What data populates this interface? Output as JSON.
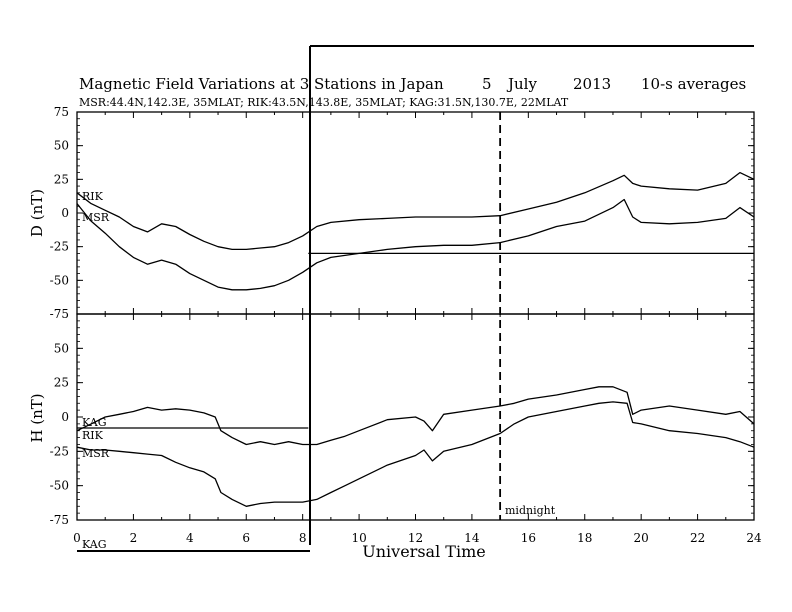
{
  "header": {
    "title": "Magnetic Field Variations at 3 Stations in Japan",
    "day": "5",
    "month": "July",
    "year": "2013",
    "averaging": "10-s averages",
    "subtitle": "MSR:44.4N,142.3E, 35MLAT;  RIK:43.5N,143.8E, 35MLAT;  KAG:31.5N,130.7E, 22MLAT"
  },
  "chart_data": [
    {
      "type": "line",
      "panel": "top",
      "ylabel": "D (nT)",
      "ylim": [
        -75,
        75
      ],
      "yticks": [
        "75",
        "50",
        "25",
        "0",
        "-25",
        "-50",
        "-75"
      ],
      "xlim": [
        0,
        24
      ],
      "grid": false,
      "series": [
        {
          "name": "RIK",
          "x": [
            0,
            0.5,
            1,
            1.5,
            2,
            2.5,
            3,
            3.5,
            4,
            4.5,
            5,
            5.5,
            6,
            6.5,
            7,
            7.5,
            8,
            8.5,
            9,
            10,
            11,
            12,
            13,
            14,
            15,
            16,
            17,
            18,
            19,
            19.4,
            19.7,
            20,
            21,
            22,
            23,
            23.5,
            24
          ],
          "y": [
            15,
            7,
            2,
            -3,
            -10,
            -14,
            -8,
            -10,
            -16,
            -21,
            -25,
            -27,
            -27,
            -26,
            -25,
            -22,
            -17,
            -10,
            -7,
            -5,
            -4,
            -3,
            -3,
            -3,
            -2,
            3,
            8,
            15,
            24,
            28,
            22,
            20,
            18,
            17,
            22,
            30,
            25
          ]
        },
        {
          "name": "MSR",
          "x": [
            0,
            0.5,
            1,
            1.5,
            2,
            2.5,
            3,
            3.5,
            4,
            4.5,
            5,
            5.5,
            6,
            6.5,
            7,
            7.5,
            8,
            8.5,
            9,
            10,
            11,
            12,
            13,
            14,
            15,
            16,
            17,
            18,
            19,
            19.4,
            19.7,
            20,
            21,
            22,
            23,
            23.5,
            24
          ],
          "y": [
            7,
            -6,
            -15,
            -25,
            -33,
            -38,
            -35,
            -38,
            -45,
            -50,
            -55,
            -57,
            -57,
            -56,
            -54,
            -50,
            -44,
            -37,
            -33,
            -30,
            -27,
            -25,
            -24,
            -24,
            -22,
            -17,
            -10,
            -6,
            4,
            10,
            -3,
            -7,
            -8,
            -7,
            -4,
            4,
            -3
          ]
        }
      ],
      "annotations": [
        {
          "text": "RIK"
        },
        {
          "text": "MSR"
        }
      ],
      "baseline_value": -30
    },
    {
      "type": "line",
      "panel": "bottom",
      "ylabel": "H (nT)",
      "xlabel": "Universal Time",
      "ylim": [
        -75,
        75
      ],
      "yticks": [
        "50",
        "25",
        "0",
        "-25",
        "-50",
        "-75"
      ],
      "xlim": [
        0,
        24
      ],
      "xticks": [
        "0",
        "2",
        "4",
        "6",
        "8",
        "10",
        "12",
        "14",
        "16",
        "18",
        "20",
        "22",
        "24"
      ],
      "grid": false,
      "series": [
        {
          "name": "KAG",
          "x": [
            0,
            0.5,
            1,
            1.5,
            2,
            2.5,
            3,
            3.5,
            4,
            4.5,
            4.9,
            5.1,
            5.5,
            6,
            6.5,
            7,
            7.5,
            8,
            8.5,
            9,
            9.5,
            10,
            11,
            12,
            12.3,
            12.6,
            13,
            14,
            15,
            15.5,
            16,
            17,
            18,
            18.5,
            19,
            19.5,
            19.7,
            20,
            21,
            22,
            23,
            23.5,
            24
          ],
          "y": [
            -10,
            -5,
            0,
            2,
            4,
            7,
            5,
            6,
            5,
            3,
            0,
            -10,
            -15,
            -20,
            -18,
            -20,
            -18,
            -20,
            -20,
            -17,
            -14,
            -10,
            -2,
            0,
            -3,
            -10,
            2,
            5,
            8,
            10,
            13,
            16,
            20,
            22,
            22,
            18,
            2,
            5,
            8,
            5,
            2,
            4,
            -5
          ]
        },
        {
          "name": "MSR",
          "x": [
            0,
            0.5,
            1,
            1.5,
            2,
            2.5,
            3,
            3.5,
            4,
            4.5,
            4.9,
            5.1,
            5.5,
            6,
            6.5,
            7,
            7.5,
            8,
            8.5,
            9,
            9.5,
            10,
            11,
            12,
            12.3,
            12.6,
            13,
            14,
            15,
            15.5,
            16,
            17,
            18,
            18.5,
            19,
            19.5,
            19.7,
            20,
            21,
            22,
            23,
            23.5,
            24
          ],
          "y": [
            -22,
            -24,
            -24,
            -25,
            -26,
            -27,
            -28,
            -33,
            -37,
            -40,
            -45,
            -55,
            -60,
            -65,
            -63,
            -62,
            -62,
            -62,
            -60,
            -55,
            -50,
            -45,
            -35,
            -28,
            -24,
            -32,
            -25,
            -20,
            -12,
            -5,
            0,
            4,
            8,
            10,
            11,
            10,
            -4,
            -5,
            -10,
            -12,
            -15,
            -18,
            -22
          ]
        }
      ],
      "annotations": [
        {
          "text": "KAG"
        },
        {
          "text": "RIK"
        },
        {
          "text": "MSR"
        },
        {
          "text": "midnight"
        },
        {
          "text": "KAG"
        }
      ],
      "baseline_value": -8,
      "midnight_x": 15
    }
  ]
}
